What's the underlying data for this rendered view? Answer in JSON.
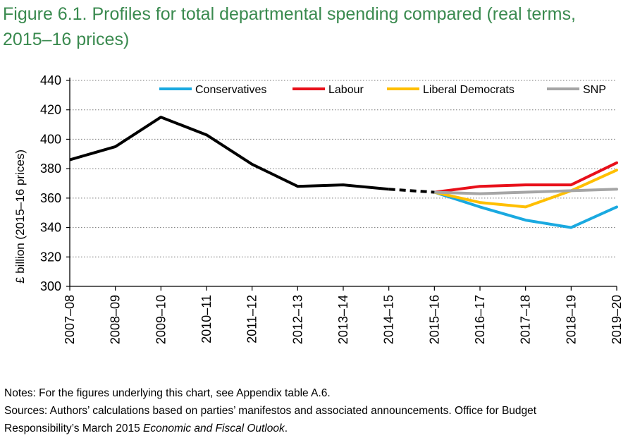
{
  "figure": {
    "title": "Figure 6.1. Profiles for total departmental spending compared (real terms, 2015–16 prices)"
  },
  "chart_data": {
    "type": "line",
    "ylabel": "£ billion (2015–16 prices)",
    "xlabel": "",
    "ylim": [
      300,
      440
    ],
    "yticks": [
      "300",
      "320",
      "340",
      "360",
      "380",
      "400",
      "420",
      "440"
    ],
    "grid": "horizontal dotted",
    "legend_position": "top",
    "categories": [
      "2007–08",
      "2008–09",
      "2009–10",
      "2010–11",
      "2011–12",
      "2012–13",
      "2013–14",
      "2014–15",
      "2015–16",
      "2016–17",
      "2017–18",
      "2018–19",
      "2019–20"
    ],
    "history": {
      "values": [
        386,
        395,
        415,
        403,
        383,
        368,
        369,
        366,
        null,
        null,
        null,
        null,
        null
      ],
      "color": "#000000"
    },
    "projection_link": {
      "values": [
        null,
        null,
        null,
        null,
        null,
        null,
        null,
        366,
        364,
        null,
        null,
        null,
        null
      ],
      "color": "#000000",
      "style": "dashed"
    },
    "series": [
      {
        "name": "Conservatives",
        "color": "#1aa9e0",
        "values": [
          null,
          null,
          null,
          null,
          null,
          null,
          null,
          null,
          364,
          354,
          345,
          340,
          354
        ]
      },
      {
        "name": "Labour",
        "color": "#e8101a",
        "values": [
          null,
          null,
          null,
          null,
          null,
          null,
          null,
          null,
          364,
          368,
          369,
          369,
          384
        ]
      },
      {
        "name": "Liberal Democrats",
        "color": "#ffbf00",
        "values": [
          null,
          null,
          null,
          null,
          null,
          null,
          null,
          null,
          364,
          357,
          354,
          365,
          379
        ]
      },
      {
        "name": "SNP",
        "color": "#a5a5a5",
        "values": [
          null,
          null,
          null,
          null,
          null,
          null,
          null,
          null,
          364,
          363,
          364,
          365,
          366
        ]
      }
    ]
  },
  "notes": {
    "line1": "Notes: For the figures underlying this chart, see Appendix table A.6.",
    "line2": "Sources: Authors’ calculations based on parties’ manifestos and associated announcements. Office for Budget",
    "line3_prefix": "Responsibility’s March 2015 ",
    "line3_italic": "Economic and Fiscal Outlook",
    "line3_suffix": "."
  }
}
